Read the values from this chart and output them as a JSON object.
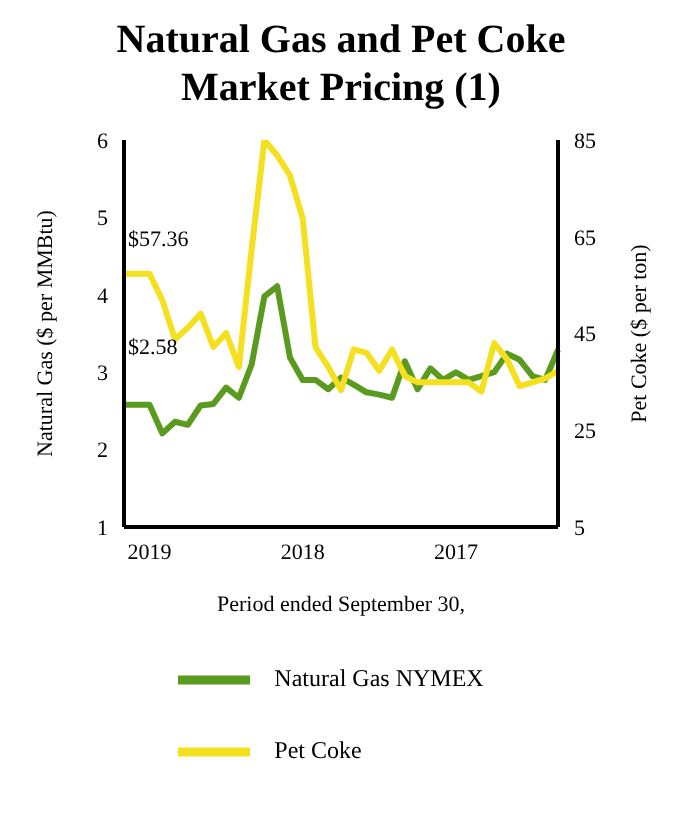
{
  "chart_data": {
    "type": "line",
    "title": "Natural Gas and Pet Coke Market Pricing (1)",
    "xlabel": "Period ended September 30,",
    "ylabel": "Natural Gas ($ per MMBtu)",
    "y2label": "Pet Coke ($ per ton)",
    "categories": [
      null,
      null,
      "2019",
      null,
      null,
      null,
      null,
      null,
      null,
      null,
      null,
      null,
      null,
      null,
      "2018",
      null,
      null,
      null,
      null,
      null,
      null,
      null,
      null,
      null,
      null,
      null,
      "2017",
      null,
      null,
      null,
      null,
      null,
      null,
      null,
      null
    ],
    "series": [
      {
        "name": "Natural Gas NYMEX",
        "color": "#5a9a1e",
        "values": [
          2.58,
          2.58,
          2.58,
          2.21,
          2.36,
          2.32,
          2.57,
          2.59,
          2.8,
          2.67,
          3.1,
          3.98,
          4.11,
          3.19,
          2.9,
          2.9,
          2.78,
          2.93,
          2.84,
          2.74,
          2.71,
          2.67,
          3.14,
          2.78,
          3.05,
          2.9,
          3.0,
          2.9,
          2.95,
          3.0,
          3.24,
          3.16,
          2.95,
          2.9,
          3.29
        ]
      },
      {
        "name": "Pet Coke",
        "color": "#f5e020",
        "axis": "y2",
        "values": [
          57.36,
          57.36,
          57.36,
          51.9,
          43.8,
          46.2,
          49.1,
          42.2,
          45.1,
          38.1,
          62.4,
          85,
          81.8,
          77.7,
          68.8,
          42.2,
          38.1,
          33.3,
          41.7,
          41.0,
          37.3,
          41.7,
          36.2,
          34.9,
          34.9,
          34.9,
          34.9,
          34.9,
          33.0,
          43.0,
          39.7,
          34.1,
          34.9,
          35.7,
          37.3
        ]
      }
    ],
    "ylim": [
      1,
      6
    ],
    "yticks": [
      1,
      2,
      3,
      4,
      5,
      6
    ],
    "y2lim": [
      5,
      85
    ],
    "y2ticks": [
      5,
      25,
      45,
      65,
      85
    ],
    "annotations": [
      "$57.36",
      "$2.58"
    ],
    "grid": false,
    "legend": "bottom",
    "marker": "none",
    "line_style": "solid"
  }
}
